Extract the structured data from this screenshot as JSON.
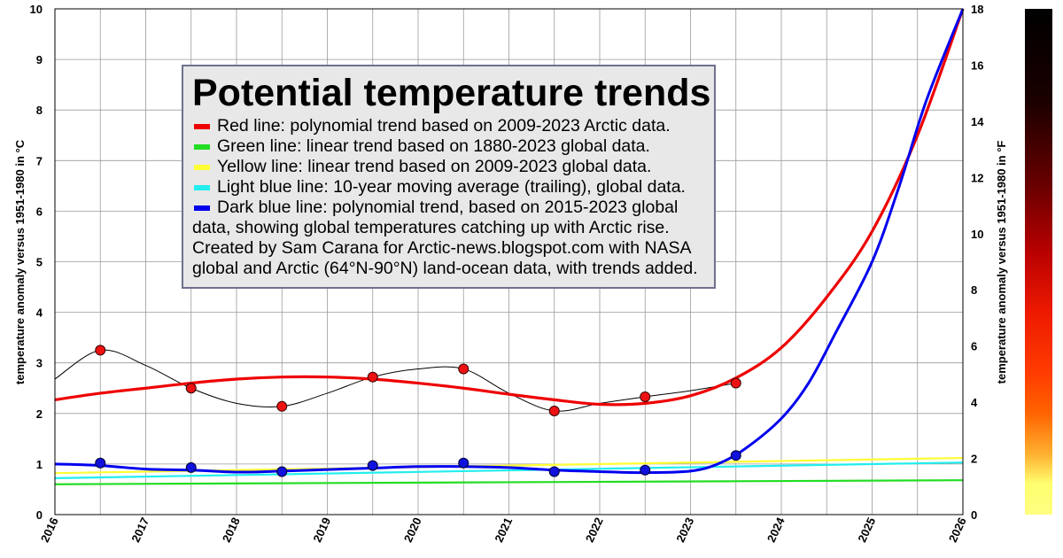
{
  "chart_data": {
    "type": "line",
    "title": "Potential temperature trends",
    "ylabel": "temperature anomaly versus 1951-1980 in °C",
    "ylabel_right": "temperature anomaly versus 1951-1980 in °F",
    "xlim": [
      2016,
      2026
    ],
    "ylim": [
      0,
      10
    ],
    "ylim_right": [
      0,
      18
    ],
    "xticks": [
      "2016",
      "2017",
      "2018",
      "2019",
      "2020",
      "2021",
      "2022",
      "2023",
      "2024",
      "2025",
      "2026"
    ],
    "yticks_left": [
      "0",
      "1",
      "2",
      "3",
      "4",
      "5",
      "6",
      "7",
      "8",
      "9",
      "10"
    ],
    "yticks_right": [
      "0",
      "2",
      "4",
      "6",
      "8",
      "10",
      "12",
      "14",
      "16",
      "18"
    ],
    "grid": true,
    "colors": {
      "red": "#ee0000",
      "green": "#22dd22",
      "yellow": "#ffff33",
      "light_blue": "#22eeee",
      "dark_blue": "#0000ee",
      "black": "#000000"
    },
    "series": [
      {
        "key": "red",
        "x": [
          2016,
          2016.5,
          2017,
          2017.5,
          2018,
          2018.5,
          2019,
          2019.5,
          2020,
          2020.5,
          2021,
          2021.5,
          2022,
          2022.5,
          2023,
          2023.5,
          2024,
          2024.5,
          2025,
          2025.5,
          2026
        ],
        "values": [
          2.27,
          2.4,
          2.5,
          2.6,
          2.68,
          2.72,
          2.72,
          2.68,
          2.6,
          2.5,
          2.38,
          2.27,
          2.18,
          2.2,
          2.35,
          2.7,
          3.3,
          4.3,
          5.6,
          7.5,
          10.0
        ]
      },
      {
        "key": "green",
        "x": [
          2016,
          2026
        ],
        "values": [
          0.6,
          0.68
        ]
      },
      {
        "key": "yellow",
        "x": [
          2016,
          2026
        ],
        "values": [
          0.82,
          1.12
        ]
      },
      {
        "key": "light_blue",
        "x": [
          2016,
          2026
        ],
        "values": [
          0.72,
          1.03
        ]
      },
      {
        "key": "dark_blue",
        "x": [
          2016,
          2016.5,
          2017,
          2017.5,
          2018,
          2018.5,
          2019,
          2019.5,
          2020,
          2020.5,
          2021,
          2021.5,
          2022,
          2022.5,
          2023,
          2023.3,
          2023.6,
          2024,
          2024.3,
          2024.6,
          2025,
          2025.3,
          2025.6,
          2026
        ],
        "values": [
          1.0,
          0.97,
          0.9,
          0.88,
          0.84,
          0.86,
          0.89,
          0.92,
          0.95,
          0.95,
          0.93,
          0.88,
          0.85,
          0.83,
          0.86,
          1.0,
          1.3,
          1.9,
          2.6,
          3.6,
          5.0,
          6.5,
          8.2,
          10.0
        ]
      },
      {
        "key": "black",
        "x": [
          2016,
          2016.5,
          2017,
          2017.5,
          2018,
          2018.5,
          2019,
          2019.5,
          2020,
          2020.5,
          2021,
          2021.5,
          2022,
          2022.5,
          2023,
          2023.5
        ],
        "values": [
          2.68,
          3.25,
          2.95,
          2.5,
          2.2,
          2.14,
          2.4,
          2.72,
          2.88,
          2.88,
          2.4,
          2.05,
          2.2,
          2.33,
          2.45,
          2.6
        ]
      }
    ],
    "points_red": {
      "x": [
        2016.5,
        2017.5,
        2018.5,
        2019.5,
        2020.5,
        2021.5,
        2022.5,
        2023.5
      ],
      "values": [
        3.25,
        2.5,
        2.14,
        2.72,
        2.88,
        2.05,
        2.33,
        2.6
      ]
    },
    "points_blue": {
      "x": [
        2016.5,
        2017.5,
        2018.5,
        2019.5,
        2020.5,
        2021.5,
        2022.5,
        2023.5
      ],
      "values": [
        1.02,
        0.93,
        0.85,
        0.97,
        1.02,
        0.85,
        0.88,
        1.17
      ]
    }
  },
  "legend": {
    "title": "Potential temperature trends",
    "items": [
      {
        "label": "Red line: polynomial trend based on 2009-2023 Arctic data.",
        "color": "#ee0000"
      },
      {
        "label": "Green line: linear trend based on 1880-2023 global data.",
        "color": "#22dd22"
      },
      {
        "label": "Yellow line: linear trend based on 2009-2023 global data.",
        "color": "#ffff33"
      },
      {
        "label": "Light blue line: 10-year moving average (trailing), global data.",
        "color": "#22eeee"
      },
      {
        "label": "Dark blue line: polynomial trend, based on 2015-2023 global",
        "color": "#0000ee"
      }
    ],
    "notes": [
      "data, showing global temperatures catching up with Arctic rise.",
      "Created by Sam Carana for Arctic-news.blogspot.com with NASA",
      "global and Arctic (64°N-90°N) land-ocean data, with trends added."
    ]
  }
}
